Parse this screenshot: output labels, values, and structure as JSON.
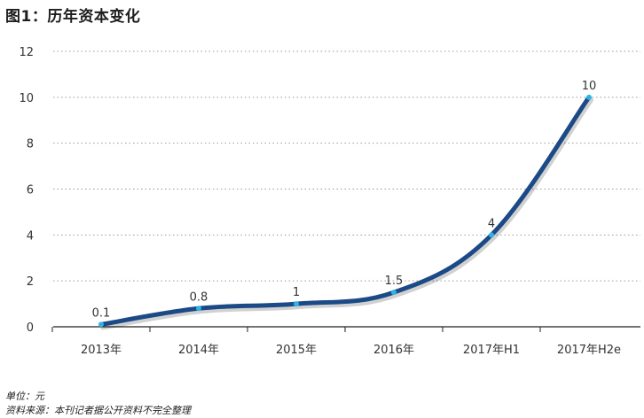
{
  "figure_title": "图1：历年资本变化",
  "footer": {
    "unit": "单位：元",
    "source": "资料来源：本刊记者据公开资料不完全整理"
  },
  "colors": {
    "line": "#1b4a86",
    "marker": "#2fb3e6",
    "grid": "#9a9a9a",
    "axis": "#222222"
  },
  "chart_data": {
    "type": "line",
    "title": "",
    "xlabel": "",
    "ylabel": "",
    "categories": [
      "2013年",
      "2014年",
      "2015年",
      "2016年",
      "2017年H1",
      "2017年H2e"
    ],
    "series": [
      {
        "values": [
          0.1,
          0.8,
          1,
          1.5,
          4,
          10
        ],
        "data_labels": [
          "0.1",
          "0.8",
          "1",
          "1.5",
          "4",
          "10"
        ]
      }
    ],
    "ylim": [
      0,
      12
    ],
    "yticks": [
      0,
      2,
      4,
      6,
      8,
      10,
      12
    ],
    "grid": "horizontal dotted",
    "legend": "none"
  }
}
